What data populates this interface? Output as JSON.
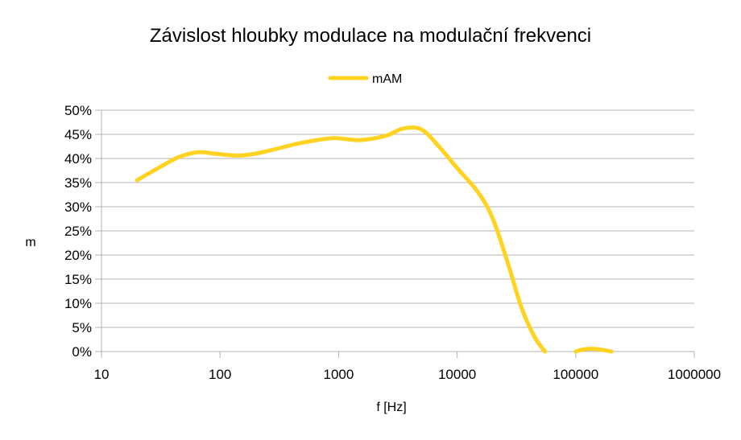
{
  "chart_data": {
    "type": "line",
    "title": "Závislost hloubky modulace na modulační frekvenci",
    "xlabel": "f [Hz]",
    "ylabel": "m",
    "x_scale": "log",
    "xlim": [
      10,
      1000000
    ],
    "ylim": [
      0,
      0.5
    ],
    "x_ticks": [
      "10",
      "100",
      "1000",
      "10000",
      "100000",
      "1000000"
    ],
    "y_ticks": [
      "0%",
      "5%",
      "10%",
      "15%",
      "20%",
      "25%",
      "30%",
      "35%",
      "40%",
      "45%",
      "50%"
    ],
    "grid": "horizontal",
    "legend_position": "top",
    "series": [
      {
        "name": "mAM",
        "color": "#ffd320",
        "segments": [
          [
            [
              20,
              0.355
            ],
            [
              30,
              0.38
            ],
            [
              45,
              0.403
            ],
            [
              65,
              0.413
            ],
            [
              90,
              0.41
            ],
            [
              140,
              0.406
            ],
            [
              200,
              0.41
            ],
            [
              300,
              0.42
            ],
            [
              500,
              0.433
            ],
            [
              900,
              0.442
            ],
            [
              1500,
              0.438
            ],
            [
              2500,
              0.447
            ],
            [
              3500,
              0.462
            ],
            [
              5000,
              0.46
            ],
            [
              7000,
              0.425
            ],
            [
              10000,
              0.38
            ],
            [
              15000,
              0.33
            ],
            [
              20000,
              0.275
            ],
            [
              27000,
              0.18
            ],
            [
              35000,
              0.09
            ],
            [
              45000,
              0.03
            ],
            [
              55000,
              0.0
            ]
          ],
          [
            [
              100000,
              0.0
            ],
            [
              120000,
              0.005
            ],
            [
              150000,
              0.005
            ],
            [
              200000,
              0.0
            ]
          ]
        ]
      }
    ]
  }
}
